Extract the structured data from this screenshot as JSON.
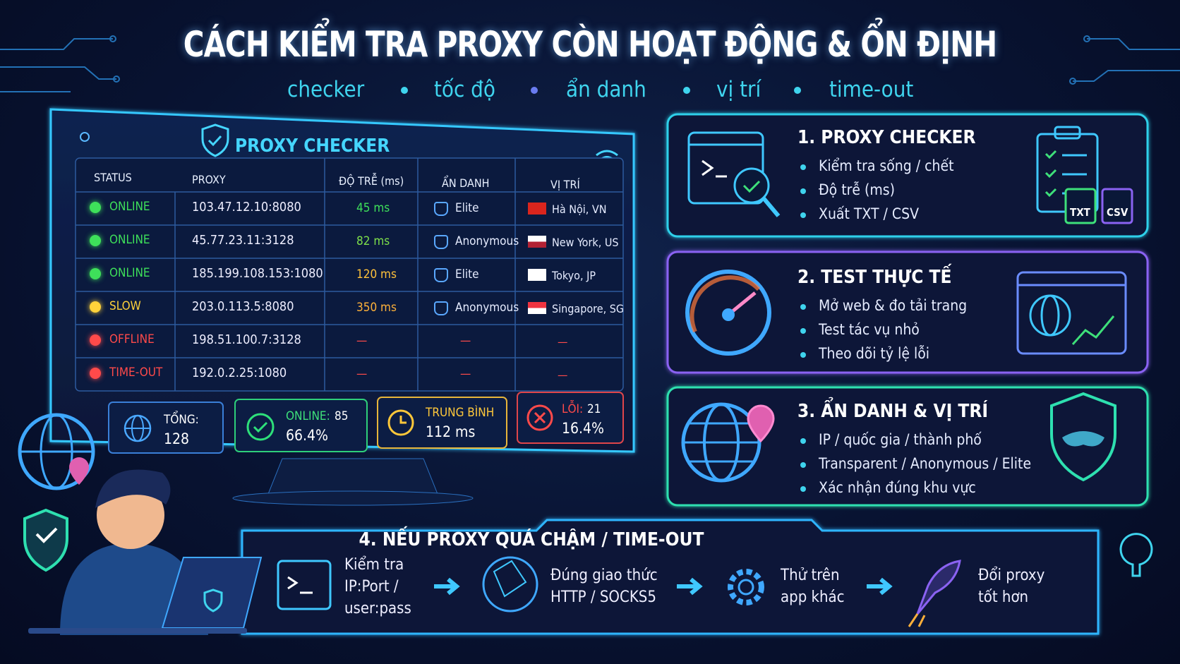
{
  "header": {
    "title": "CÁCH KIỂM TRA PROXY CÒN HOẠT ĐỘNG & ỔN ĐỊNH",
    "tags": [
      "checker",
      "tốc độ",
      "ẩn danh",
      "vị trí",
      "time-out"
    ]
  },
  "checker": {
    "title": "PROXY CHECKER",
    "columns": [
      "STATUS",
      "PROXY",
      "ĐỘ TRỄ (ms)",
      "ẨN DANH",
      "VỊ TRÍ"
    ],
    "rows": [
      [
        "ONLINE",
        "103.47.12.10:8080",
        "45 ms",
        "Elite",
        "Hà Nội, VN"
      ],
      [
        "ONLINE",
        "45.77.23.11:3128",
        "82 ms",
        "Anonymous",
        "New York, US"
      ],
      [
        "ONLINE",
        "185.199.108.153:1080",
        "120 ms",
        "Elite",
        "Tokyo, JP"
      ],
      [
        "SLOW",
        "203.0.113.5:8080",
        "350 ms",
        "Anonymous",
        "Singapore, SG"
      ],
      [
        "OFFLINE",
        "198.51.100.7:3128",
        "—",
        "—",
        "—"
      ],
      [
        "TIME-OUT",
        "192.0.2.25:1080",
        "—",
        "—",
        "—"
      ]
    ],
    "summary": [
      {
        "label": "TỔNG:",
        "value": "128"
      },
      {
        "label": "ONLINE:",
        "count": "85",
        "value": "66.4%"
      },
      {
        "label": "TRUNG BÌNH",
        "value": "112 ms"
      },
      {
        "label": "LỖI:",
        "count": "21",
        "value": "16.4%"
      }
    ]
  },
  "steps": [
    {
      "title": "1. PROXY CHECKER",
      "items": [
        "Kiểm tra sống / chết",
        "Độ trễ (ms)",
        "Xuất TXT / CSV"
      ],
      "badges": [
        "TXT",
        "CSV"
      ]
    },
    {
      "title": "2. TEST THỰC TẾ",
      "items": [
        "Mở web & đo tải trang",
        "Test tác vụ nhỏ",
        "Theo dõi tỷ lệ lỗi"
      ]
    },
    {
      "title": "3. ẨN DANH & VỊ TRÍ",
      "items": [
        "IP / quốc gia / thành phố",
        "Transparent / Anonymous / Elite",
        "Xác nhận đúng khu vực"
      ]
    }
  ],
  "fallback": {
    "title": "4. NẾU PROXY QUÁ CHẬM / TIME-OUT",
    "steps": [
      {
        "lines": [
          "Kiểm tra",
          "IP:Port /",
          "user:pass"
        ]
      },
      {
        "lines": [
          "Đúng giao thức",
          "HTTP / SOCKS5"
        ]
      },
      {
        "lines": [
          "Thử trên",
          "app khác"
        ]
      },
      {
        "lines": [
          "Đổi proxy",
          "tốt hơn"
        ]
      }
    ]
  }
}
